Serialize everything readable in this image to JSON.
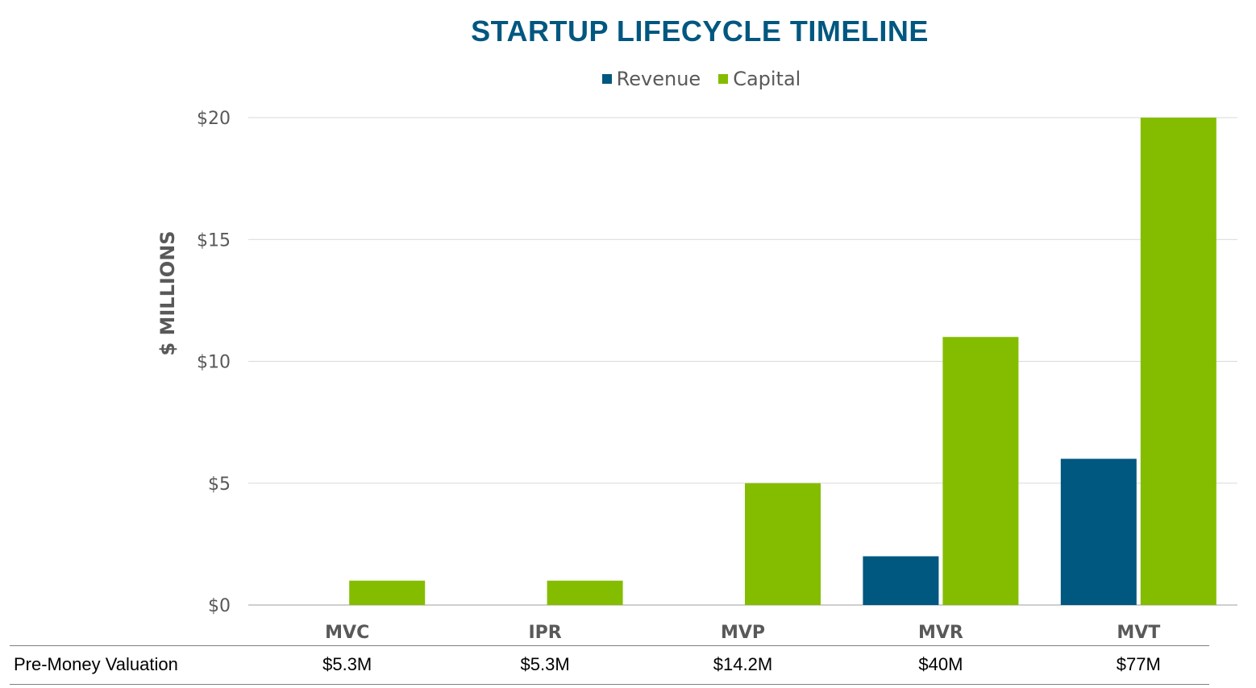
{
  "chart_data": {
    "type": "bar",
    "title": "STARTUP LIFECYCLE TIMELINE",
    "ylabel": "$ MILLIONS",
    "xlabel": "",
    "categories": [
      "MVC",
      "IPR",
      "MVP",
      "MVR",
      "MVT"
    ],
    "series": [
      {
        "name": "Revenue",
        "color": "#00577f",
        "values": [
          0,
          0,
          0,
          2,
          6
        ]
      },
      {
        "name": "Capital",
        "color": "#84bd00",
        "values": [
          1,
          1,
          5,
          11,
          20
        ]
      }
    ],
    "ylim": [
      0,
      20
    ],
    "yticks": [
      {
        "value": 0,
        "label": "$0"
      },
      {
        "value": 5,
        "label": "$5"
      },
      {
        "value": 10,
        "label": "$10"
      },
      {
        "value": 15,
        "label": "$15"
      },
      {
        "value": 20,
        "label": "$20"
      }
    ],
    "grid": true,
    "legend_position": "top"
  },
  "valuation_table": {
    "row_label": "Pre-Money Valuation",
    "values": [
      "$5.3M",
      "$5.3M",
      "$14.2M",
      "$40M",
      "$77M"
    ]
  }
}
